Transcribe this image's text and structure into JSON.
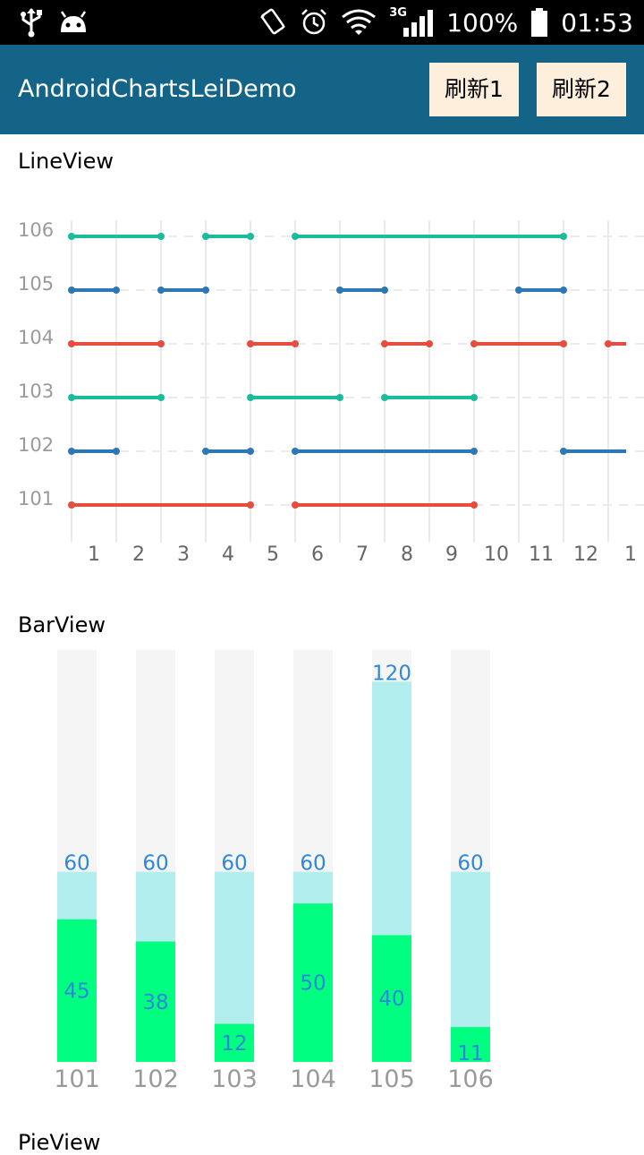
{
  "status_bar": {
    "battery": "100%",
    "time": "01:53",
    "network": "3G"
  },
  "app_bar": {
    "title": "AndroidChartsLeiDemo",
    "refresh1_label": "刷新1",
    "refresh2_label": "刷新2",
    "background_color": "#136487",
    "button_color": "#fdefdc"
  },
  "line_view": {
    "title": "LineView"
  },
  "bar_view": {
    "title": "BarView"
  },
  "pie_view": {
    "title": "PieView"
  },
  "chart_data": [
    {
      "type": "line",
      "y_categories": [
        "101",
        "102",
        "103",
        "104",
        "105",
        "106"
      ],
      "x_ticks": [
        "1",
        "2",
        "3",
        "4",
        "5",
        "6",
        "7",
        "8",
        "9",
        "10",
        "11",
        "12",
        "1"
      ],
      "grid": true,
      "colors": {
        "red": "#e74c3c",
        "blue": "#2e77b5",
        "green": "#1abc9c"
      },
      "series": [
        {
          "y": "106",
          "color": "green",
          "segments": [
            [
              0,
              2
            ],
            [
              3,
              4
            ],
            [
              5,
              11
            ]
          ]
        },
        {
          "y": "105",
          "color": "blue",
          "segments": [
            [
              0,
              1
            ],
            [
              2,
              3
            ],
            [
              6,
              7
            ],
            [
              10,
              11
            ]
          ]
        },
        {
          "y": "104",
          "color": "red",
          "segments": [
            [
              0,
              2
            ],
            [
              4,
              5
            ],
            [
              7,
              8
            ],
            [
              9,
              11
            ],
            [
              12,
              12.4
            ]
          ]
        },
        {
          "y": "103",
          "color": "green",
          "segments": [
            [
              0,
              2
            ],
            [
              4,
              6
            ],
            [
              7,
              9
            ]
          ]
        },
        {
          "y": "102",
          "color": "blue",
          "segments": [
            [
              0,
              1
            ],
            [
              3,
              4
            ],
            [
              5,
              9
            ],
            [
              11,
              12.4
            ]
          ]
        },
        {
          "y": "101",
          "color": "red",
          "segments": [
            [
              0,
              4
            ],
            [
              5,
              9
            ]
          ]
        }
      ]
    },
    {
      "type": "bar",
      "categories": [
        "101",
        "102",
        "103",
        "104",
        "105",
        "106"
      ],
      "series": [
        {
          "values": [
            60,
            60,
            60,
            60,
            120,
            60
          ],
          "color": "#b2eeee"
        },
        {
          "values": [
            45,
            38,
            12,
            50,
            40,
            11
          ],
          "color": "#00ff80"
        }
      ],
      "ylim": [
        0,
        130
      ],
      "background_color": "#f5f5f5",
      "label_color": "#2e88d8"
    }
  ]
}
